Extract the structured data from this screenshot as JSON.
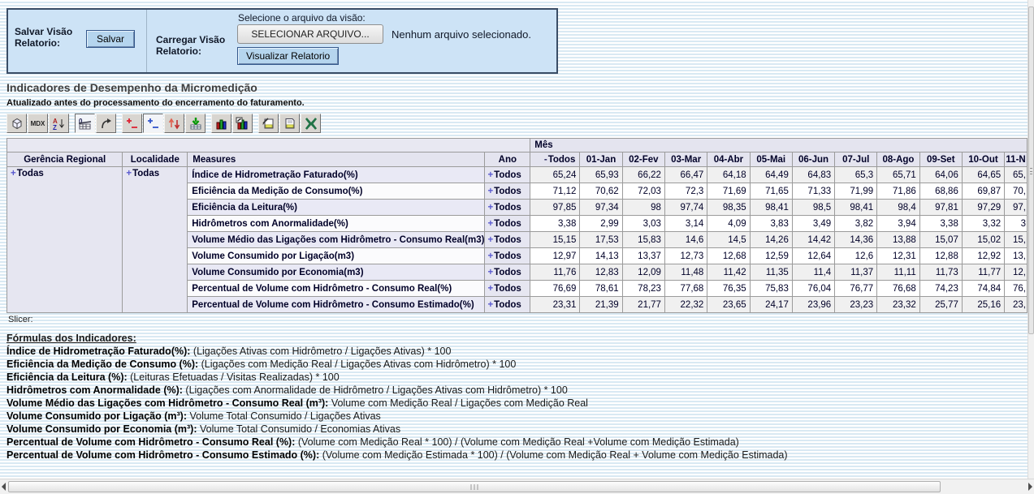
{
  "colors": {
    "panel_bg": "#cde3f6",
    "panel_border": "#3a4d66",
    "button_blue": "#b5d5ee",
    "stripe_blue": "#d9e9f3",
    "header_lavender": "#e4e4ef",
    "alt_row_grey": "#f0f0f0",
    "expand_plus_blue": "#5a5ad0",
    "excel_green": "#217346",
    "chart_red": "#cc2222",
    "chart_green": "#22aa33",
    "chart_blue": "#2233cc"
  },
  "panel": {
    "save_label": "Salvar Visão Relatorio:",
    "save_button": "Salvar",
    "load_label": "Carregar Visão Relatorio:",
    "file_prompt": "Selecione o arquivo da visão:",
    "file_button": "SELECIONAR ARQUIVO...",
    "file_status": "Nenhum arquivo selecionado.",
    "view_button": "Visualizar Relatorio"
  },
  "header": {
    "title": "Indicadores de Desempenho da Micromedição",
    "subtitle": "Atualizado antes do processamento do encerramento do faturamento."
  },
  "toolbar": {
    "icons": [
      {
        "name": "cube-icon"
      },
      {
        "name": "mdx-icon",
        "text": "MDX"
      },
      {
        "name": "sort-az-icon",
        "letters": [
          "A",
          "Z"
        ]
      },
      {
        "name": "suppress-empty-icon",
        "text": "0",
        "pressed": true
      },
      {
        "name": "swap-axes-icon"
      },
      {
        "name": "drill-member-icon"
      },
      {
        "name": "drill-position-icon",
        "pressed": true
      },
      {
        "name": "drill-replace-icon"
      },
      {
        "name": "drill-through-icon"
      },
      {
        "name": "show-chart-icon"
      },
      {
        "name": "chart-config-icon"
      },
      {
        "name": "print-config-icon"
      },
      {
        "name": "print-icon"
      },
      {
        "name": "excel-export-icon"
      }
    ],
    "groups_after": [
      2,
      4,
      8,
      10
    ]
  },
  "table": {
    "mes_label": "Mês",
    "col_headers": [
      "Gerência Regional",
      "Localidade",
      "Measures",
      "Ano"
    ],
    "collapse_symbol": "-",
    "expand_symbol": "+",
    "month_headers": [
      "Todos",
      "01-Jan",
      "02-Fev",
      "03-Mar",
      "04-Abr",
      "05-Mai",
      "06-Jun",
      "07-Jul",
      "08-Ago",
      "09-Set",
      "10-Out",
      "11-N"
    ],
    "gerencia_value": "Todas",
    "localidade_value": "Todas",
    "ano_value": "Todos",
    "rows": [
      {
        "measure": "Índice de Hidrometração Faturado(%)",
        "values": [
          "65,24",
          "65,93",
          "66,22",
          "66,47",
          "64,18",
          "64,49",
          "64,83",
          "65,3",
          "65,71",
          "64,06",
          "64,65",
          "65,"
        ]
      },
      {
        "measure": "Eficiência da Medição de Consumo(%)",
        "values": [
          "71,12",
          "70,62",
          "72,03",
          "72,3",
          "71,69",
          "71,65",
          "71,33",
          "71,99",
          "71,86",
          "68,86",
          "69,87",
          "70,"
        ]
      },
      {
        "measure": "Eficiência da Leitura(%)",
        "values": [
          "97,85",
          "97,34",
          "98",
          "97,74",
          "98,35",
          "98,41",
          "98,5",
          "98,41",
          "98,4",
          "97,81",
          "97,29",
          "97,"
        ]
      },
      {
        "measure": "Hidrômetros com Anormalidade(%)",
        "values": [
          "3,38",
          "2,99",
          "3,03",
          "3,14",
          "4,09",
          "3,83",
          "3,49",
          "3,82",
          "3,94",
          "3,38",
          "3,32",
          "3"
        ]
      },
      {
        "measure": "Volume Médio das Ligações com Hidrômetro - Consumo Real(m3)",
        "values": [
          "15,15",
          "17,53",
          "15,83",
          "14,6",
          "14,5",
          "14,26",
          "14,42",
          "14,36",
          "13,88",
          "15,07",
          "15,02",
          "15,"
        ]
      },
      {
        "measure": "Volume Consumido por Ligação(m3)",
        "values": [
          "12,97",
          "14,13",
          "13,37",
          "12,73",
          "12,68",
          "12,59",
          "12,64",
          "12,6",
          "12,31",
          "12,88",
          "12,92",
          "13,"
        ]
      },
      {
        "measure": "Volume Consumido por Economia(m3)",
        "values": [
          "11,76",
          "12,83",
          "12,09",
          "11,48",
          "11,42",
          "11,35",
          "11,4",
          "11,37",
          "11,11",
          "11,73",
          "11,77",
          "12,"
        ]
      },
      {
        "measure": "Percentual de Volume com Hidrômetro - Consumo Real(%)",
        "values": [
          "76,69",
          "78,61",
          "78,23",
          "77,68",
          "76,35",
          "75,83",
          "76,04",
          "76,77",
          "76,68",
          "74,23",
          "74,84",
          "76,"
        ]
      },
      {
        "measure": "Percentual de Volume com Hidrômetro - Consumo Estimado(%)",
        "values": [
          "23,31",
          "21,39",
          "21,77",
          "22,32",
          "23,65",
          "24,17",
          "23,96",
          "23,23",
          "23,32",
          "25,77",
          "25,16",
          "23,"
        ]
      }
    ]
  },
  "slicer_label": "Slicer:",
  "formulas": {
    "title": "Fórmulas dos Indicadores:",
    "items": [
      {
        "name": "Índice de Hidrometração Faturado(%):",
        "body": "(Ligações Ativas com Hidrômetro / Ligações Ativas) * 100"
      },
      {
        "name": "Eficiência da Medição de Consumo (%):",
        "body": "(Ligações com Medição Real / Ligações Ativas com Hidrômetro) * 100"
      },
      {
        "name": "Eficiência da Leitura (%):",
        "body": "(Leituras Efetuadas / Visitas Realizadas) * 100"
      },
      {
        "name": "Hidrômetros com Anormalidade (%):",
        "body": "(Ligações com Anormalidade de Hidrômetro / Ligações Ativas com Hidrômetro) * 100"
      },
      {
        "name": "Volume Médio das Ligações com Hidrômetro - Consumo Real (m³):",
        "body": "Volume com Medição Real / Ligações com Medição Real"
      },
      {
        "name": "Volume Consumido por Ligação (m³):",
        "body": "Volume Total Consumido / Ligações Ativas"
      },
      {
        "name": "Volume Consumido por Economia (m³):",
        "body": "Volume Total Consumido / Economias Ativas"
      },
      {
        "name": "Percentual de Volume com Hidrômetro - Consumo Real (%):",
        "body": "(Volume com Medição Real * 100) / (Volume com Medição Real +Volume com Medição Estimada)"
      },
      {
        "name": "Percentual de Volume com Hidrômetro - Consumo Estimado (%):",
        "body": "(Volume com Medição Estimada * 100) / (Volume com Medição Real + Volume com Medição Estimada)"
      }
    ]
  }
}
